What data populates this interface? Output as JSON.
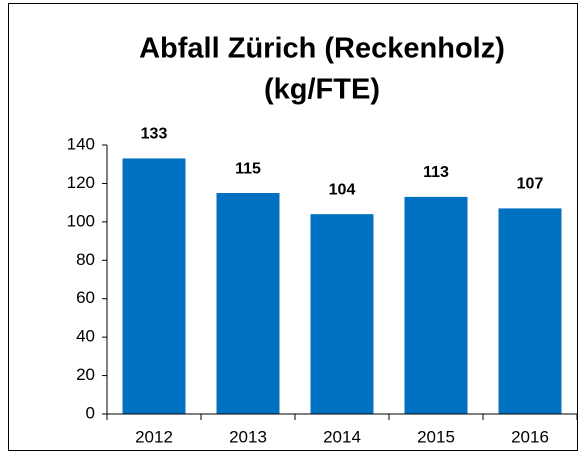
{
  "chart_data": {
    "type": "bar",
    "title": [
      "Abfall Zürich (Reckenholz)",
      "(kg/FTE)"
    ],
    "categories": [
      "2012",
      "2013",
      "2014",
      "2015",
      "2016"
    ],
    "values": [
      133,
      115,
      104,
      113,
      107
    ],
    "color": "#0070c0",
    "ylim": [
      0,
      140
    ],
    "yticks": [
      0,
      20,
      40,
      60,
      80,
      100,
      120,
      140
    ],
    "grid": false
  }
}
